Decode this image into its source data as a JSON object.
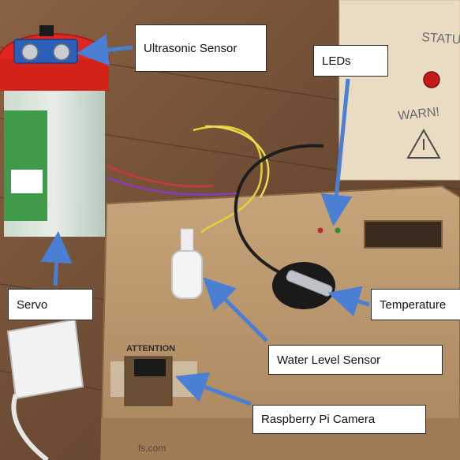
{
  "labels": {
    "ultrasonic": "Ultrasonic Sensor",
    "leds": "LEDs",
    "servo": "Servo",
    "temperature": "Temperature",
    "water_level": "Water Level Sensor",
    "camera": "Raspberry Pi Camera"
  },
  "scene_text": {
    "attention": "ATTENTION",
    "status": "STATUS",
    "warn": "WARN!",
    "box_brand": "fs.com"
  },
  "colors": {
    "arrow": "#4a7fd4",
    "floor": "#6b4a33",
    "cardboard": "#b8936a",
    "jar_lid": "#e0261f",
    "inset_paper": "#e9dcc3"
  }
}
